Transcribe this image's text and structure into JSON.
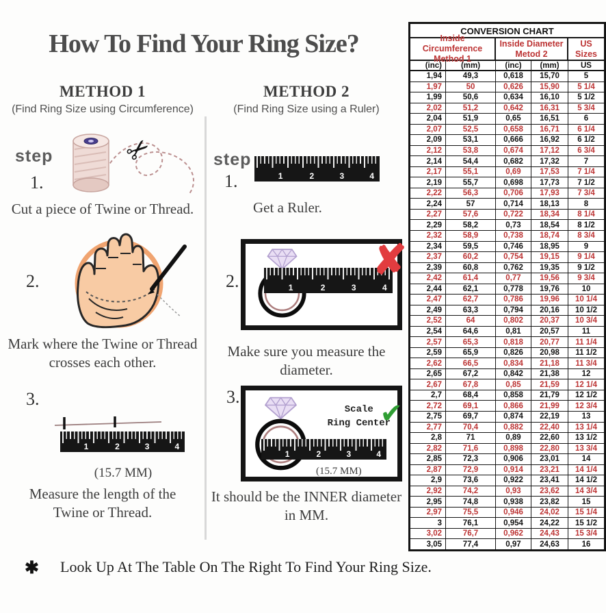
{
  "page": {
    "title": "How To Find Your Ring Size?",
    "footnote_symbol": "✱",
    "footnote": "Look Up At The Table On The Right To Find Your Ring Size."
  },
  "colors": {
    "table_red": "#bc3333",
    "x_red": "#e23c3f",
    "check_green": "#2f9e33",
    "circle_orange": "#ef9f68",
    "hand_skin": "#f8cba4"
  },
  "method1": {
    "heading": "METHOD 1",
    "subheading": "(Find Ring Size using Circumference)",
    "step_label": "step",
    "step1_num": "1.",
    "step1_caption": "Cut a piece of  Twine or Thread.",
    "step2_num": "2.",
    "step2_caption_line1": "Mark where the Twine or Thread",
    "step2_caption_line2": "crosses each other.",
    "step3_num": "3.",
    "step3_note": "(15.7 MM)",
    "step3_caption_line1": "Measure the length of the",
    "step3_caption_line2": "Twine or Thread."
  },
  "method2": {
    "heading": "METHOD 2",
    "subheading": "(Find Ring Size using a Ruler)",
    "step_label": "step",
    "step1_num": "1.",
    "step1_caption": "Get a Ruler.",
    "step2_num": "2.",
    "step2_caption": "Make sure you measure the diameter.",
    "step2_wrong_mark": "✘",
    "step3_num": "3.",
    "step3_scale_line1": "Scale",
    "step3_scale_line2": "Ring Center",
    "step3_right_mark": "✔",
    "step3_note": "(15.7 MM)",
    "step3_caption_line1": "It should be the INNER diameter",
    "step3_caption_line2": "in MM."
  },
  "ruler": {
    "numbers": [
      "1",
      "2",
      "3",
      "4"
    ]
  },
  "conversion_chart": {
    "title": "CONVERSION CHART",
    "group1_line1": "Inside Circumference",
    "group1_line2": "Method 1",
    "group2_line1": "Inside Diameter",
    "group2_line2": "Metod 2",
    "group3": "US Sizes",
    "subheaders": [
      "(inc)",
      "(mm)",
      "(inc)",
      "(mm)",
      "US"
    ],
    "rows": [
      {
        "c": [
          "1,94",
          "49,3",
          "0,618",
          "15,70",
          "5"
        ],
        "red": false
      },
      {
        "c": [
          "1,97",
          "50",
          "0,626",
          "15,90",
          "5 1/4"
        ],
        "red": true
      },
      {
        "c": [
          "1,99",
          "50,6",
          "0,634",
          "16,10",
          "5 1/2"
        ],
        "red": false
      },
      {
        "c": [
          "2,02",
          "51,2",
          "0,642",
          "16,31",
          "5 3/4"
        ],
        "red": true
      },
      {
        "c": [
          "2,04",
          "51,9",
          "0,65",
          "16,51",
          "6"
        ],
        "red": false
      },
      {
        "c": [
          "2,07",
          "52,5",
          "0,658",
          "16,71",
          "6 1/4"
        ],
        "red": true
      },
      {
        "c": [
          "2,09",
          "53,1",
          "0,666",
          "16,92",
          "6 1/2"
        ],
        "red": false
      },
      {
        "c": [
          "2,12",
          "53,8",
          "0,674",
          "17,12",
          "6 3/4"
        ],
        "red": true
      },
      {
        "c": [
          "2,14",
          "54,4",
          "0,682",
          "17,32",
          "7"
        ],
        "red": false
      },
      {
        "c": [
          "2,17",
          "55,1",
          "0,69",
          "17,53",
          "7 1/4"
        ],
        "red": true
      },
      {
        "c": [
          "2,19",
          "55,7",
          "0,698",
          "17,73",
          "7 1/2"
        ],
        "red": false
      },
      {
        "c": [
          "2,22",
          "56,3",
          "0,706",
          "17,93",
          "7 3/4"
        ],
        "red": true
      },
      {
        "c": [
          "2,24",
          "57",
          "0,714",
          "18,13",
          "8"
        ],
        "red": false
      },
      {
        "c": [
          "2,27",
          "57,6",
          "0,722",
          "18,34",
          "8 1/4"
        ],
        "red": true
      },
      {
        "c": [
          "2,29",
          "58,2",
          "0,73",
          "18,54",
          "8 1/2"
        ],
        "red": false
      },
      {
        "c": [
          "2,32",
          "58,9",
          "0,738",
          "18,74",
          "8 3/4"
        ],
        "red": true
      },
      {
        "c": [
          "2,34",
          "59,5",
          "0,746",
          "18,95",
          "9"
        ],
        "red": false
      },
      {
        "c": [
          "2,37",
          "60,2",
          "0,754",
          "19,15",
          "9 1/4"
        ],
        "red": true
      },
      {
        "c": [
          "2,39",
          "60,8",
          "0,762",
          "19,35",
          "9 1/2"
        ],
        "red": false
      },
      {
        "c": [
          "2,42",
          "61,4",
          "0,77",
          "19,56",
          "9 3/4"
        ],
        "red": true
      },
      {
        "c": [
          "2,44",
          "62,1",
          "0,778",
          "19,76",
          "10"
        ],
        "red": false
      },
      {
        "c": [
          "2,47",
          "62,7",
          "0,786",
          "19,96",
          "10 1/4"
        ],
        "red": true
      },
      {
        "c": [
          "2,49",
          "63,3",
          "0,794",
          "20,16",
          "10 1/2"
        ],
        "red": false
      },
      {
        "c": [
          "2,52",
          "64",
          "0,802",
          "20,37",
          "10 3/4"
        ],
        "red": true
      },
      {
        "c": [
          "2,54",
          "64,6",
          "0,81",
          "20,57",
          "11"
        ],
        "red": false
      },
      {
        "c": [
          "2,57",
          "65,3",
          "0,818",
          "20,77",
          "11 1/4"
        ],
        "red": true
      },
      {
        "c": [
          "2,59",
          "65,9",
          "0,826",
          "20,98",
          "11 1/2"
        ],
        "red": false
      },
      {
        "c": [
          "2,62",
          "66,5",
          "0,834",
          "21,18",
          "11 3/4"
        ],
        "red": true
      },
      {
        "c": [
          "2,65",
          "67,2",
          "0,842",
          "21,38",
          "12"
        ],
        "red": false
      },
      {
        "c": [
          "2,67",
          "67,8",
          "0,85",
          "21,59",
          "12 1/4"
        ],
        "red": true
      },
      {
        "c": [
          "2,7",
          "68,4",
          "0,858",
          "21,79",
          "12 1/2"
        ],
        "red": false
      },
      {
        "c": [
          "2,72",
          "69,1",
          "0,866",
          "21,99",
          "12 3/4"
        ],
        "red": true
      },
      {
        "c": [
          "2,75",
          "69,7",
          "0,874",
          "22,19",
          "13"
        ],
        "red": false
      },
      {
        "c": [
          "2,77",
          "70,4",
          "0,882",
          "22,40",
          "13 1/4"
        ],
        "red": true
      },
      {
        "c": [
          "2,8",
          "71",
          "0,89",
          "22,60",
          "13 1/2"
        ],
        "red": false
      },
      {
        "c": [
          "2,82",
          "71,6",
          "0,898",
          "22,80",
          "13 3/4"
        ],
        "red": true
      },
      {
        "c": [
          "2,85",
          "72,3",
          "0,906",
          "23,01",
          "14"
        ],
        "red": false
      },
      {
        "c": [
          "2,87",
          "72,9",
          "0,914",
          "23,21",
          "14 1/4"
        ],
        "red": true
      },
      {
        "c": [
          "2,9",
          "73,6",
          "0,922",
          "23,41",
          "14 1/2"
        ],
        "red": false
      },
      {
        "c": [
          "2,92",
          "74,2",
          "0,93",
          "23,62",
          "14 3/4"
        ],
        "red": true
      },
      {
        "c": [
          "2,95",
          "74,8",
          "0,938",
          "23,82",
          "15"
        ],
        "red": false
      },
      {
        "c": [
          "2,97",
          "75,5",
          "0,946",
          "24,02",
          "15 1/4"
        ],
        "red": true
      },
      {
        "c": [
          "3",
          "76,1",
          "0,954",
          "24,22",
          "15 1/2"
        ],
        "red": false
      },
      {
        "c": [
          "3,02",
          "76,7",
          "0,962",
          "24,43",
          "15 3/4"
        ],
        "red": true
      },
      {
        "c": [
          "3,05",
          "77,4",
          "0,97",
          "24,63",
          "16"
        ],
        "red": false
      }
    ]
  }
}
